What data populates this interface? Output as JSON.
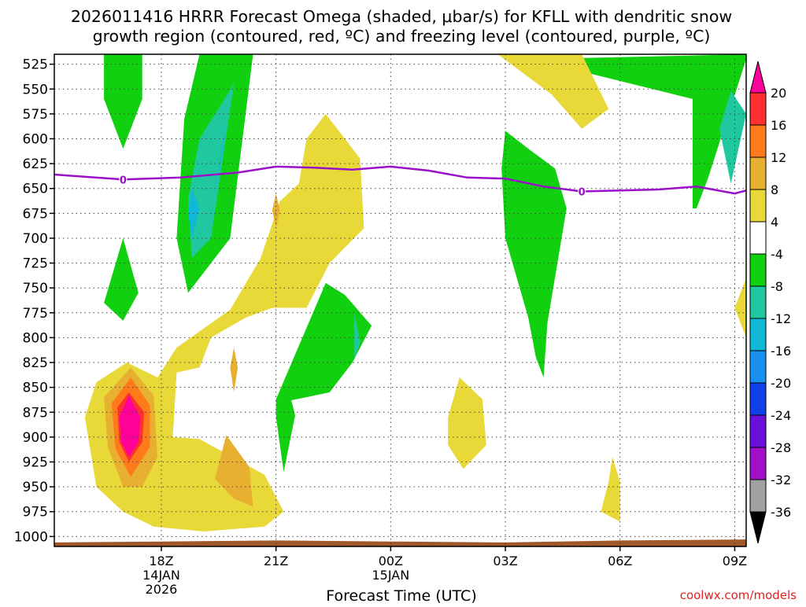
{
  "chart_data": {
    "type": "contour",
    "title_line1": "2026011416 HRRR Forecast Omega (shaded, μbar/s) for KFLL with dendritic snow",
    "title_line2": "growth region (contoured, red, ºC) and freezing level (contoured, purple, ºC)",
    "xlabel": "Forecast Time (UTC)",
    "credit": "coolwx.com/models",
    "x_range_hours": [
      -0.8,
      17.3
    ],
    "y_range_mb": [
      515,
      1010
    ],
    "pressure_levels": [
      525,
      550,
      575,
      600,
      625,
      650,
      675,
      700,
      725,
      750,
      775,
      800,
      825,
      850,
      875,
      900,
      925,
      950,
      975,
      1000
    ],
    "pressure_labels": [
      "525",
      "550",
      "575",
      "600",
      "625",
      "650",
      "675",
      "700",
      "725",
      "750",
      "775",
      "800",
      "825",
      "850",
      "875",
      "900",
      "925",
      "950",
      "975",
      "1000"
    ],
    "x_ticks": [
      {
        "hour": 2,
        "label": "18Z",
        "date": "14JAN",
        "year": "2026"
      },
      {
        "hour": 5,
        "label": "21Z",
        "date": "",
        "year": ""
      },
      {
        "hour": 8,
        "label": "00Z",
        "date": "15JAN",
        "year": ""
      },
      {
        "hour": 11,
        "label": "03Z",
        "date": "",
        "year": ""
      },
      {
        "hour": 14,
        "label": "06Z",
        "date": "",
        "year": ""
      },
      {
        "hour": 17,
        "label": "09Z",
        "date": "",
        "year": ""
      }
    ],
    "colorbar": {
      "labels": [
        "20",
        "16",
        "12",
        "8",
        "4",
        "-4",
        "-8",
        "-12",
        "-16",
        "-20",
        "-24",
        "-28",
        "-32",
        "-36"
      ],
      "colors": [
        "#ff0099",
        "#ff3030",
        "#ff7a1a",
        "#e8b030",
        "#e8d838",
        "#ffffff",
        "#10d010",
        "#20c8a0",
        "#10b8d8",
        "#1890f0",
        "#1040e8",
        "#6a10d8",
        "#a010c8",
        "#a0a0a0",
        "#000000"
      ]
    },
    "freezing_level": {
      "label": "0",
      "color": "#9910c8",
      "hours": [
        -0.8,
        1.0,
        2.5,
        4.0,
        5.0,
        6.0,
        7.0,
        8.0,
        9.0,
        10.0,
        11.0,
        12.0,
        13.0,
        14.0,
        15.0,
        16.0,
        17.0,
        17.3
      ],
      "pressure_mb": [
        636,
        641,
        639,
        634,
        628,
        629,
        631,
        628,
        632,
        639,
        640,
        648,
        653,
        652,
        651,
        648,
        655,
        652
      ],
      "label_hours": [
        1.0,
        13.0
      ]
    },
    "omega_regions": [
      {
        "level": -4,
        "points": [
          [
            0.5,
            512
          ],
          [
            1.5,
            512
          ],
          [
            1.5,
            560
          ],
          [
            1.0,
            610
          ],
          [
            0.5,
            560
          ]
        ]
      },
      {
        "level": -4,
        "points": [
          [
            3.0,
            512
          ],
          [
            4.4,
            512
          ],
          [
            3.8,
            700
          ],
          [
            2.7,
            755
          ],
          [
            2.4,
            700
          ],
          [
            2.6,
            580
          ]
        ]
      },
      {
        "level": -8,
        "points": [
          [
            3.9,
            545
          ],
          [
            3.3,
            700
          ],
          [
            2.8,
            720
          ],
          [
            2.7,
            660
          ],
          [
            3.0,
            600
          ]
        ]
      },
      {
        "level": -12,
        "points": [
          [
            3.7,
            585
          ],
          [
            3.4,
            650
          ],
          [
            3.6,
            615
          ]
        ]
      },
      {
        "level": -12,
        "points": [
          [
            2.8,
            650
          ],
          [
            3.0,
            670
          ],
          [
            2.8,
            700
          ],
          [
            2.7,
            675
          ]
        ]
      },
      {
        "level": -4,
        "points": [
          [
            1.0,
            700
          ],
          [
            1.4,
            755
          ],
          [
            1.0,
            783
          ],
          [
            0.5,
            765
          ]
        ]
      },
      {
        "level": -4,
        "points": [
          [
            11.7,
            520
          ],
          [
            17.3,
            515
          ],
          [
            17.3,
            520
          ],
          [
            16.3,
            640
          ],
          [
            16.0,
            670
          ],
          [
            15.9,
            670
          ],
          [
            15.9,
            560
          ]
        ]
      },
      {
        "level": -8,
        "points": [
          [
            16.9,
            552
          ],
          [
            17.4,
            575
          ],
          [
            16.9,
            645
          ],
          [
            16.6,
            590
          ]
        ]
      },
      {
        "level": -4,
        "points": [
          [
            11.0,
            592
          ],
          [
            11.6,
            610
          ],
          [
            12.3,
            630
          ],
          [
            12.6,
            670
          ],
          [
            12.1,
            785
          ],
          [
            12.0,
            840
          ],
          [
            11.8,
            820
          ],
          [
            11.6,
            780
          ],
          [
            11.0,
            700
          ],
          [
            10.9,
            630
          ]
        ]
      },
      {
        "level": -4,
        "points": [
          [
            6.3,
            745
          ],
          [
            6.8,
            757
          ],
          [
            7.5,
            788
          ],
          [
            7.0,
            825
          ],
          [
            6.4,
            855
          ],
          [
            5.4,
            863
          ],
          [
            5.5,
            878
          ],
          [
            5.2,
            935
          ],
          [
            5.0,
            880
          ],
          [
            5.0,
            862
          ]
        ]
      },
      {
        "level": -8,
        "points": [
          [
            7.05,
            775
          ],
          [
            7.2,
            805
          ],
          [
            7.05,
            822
          ]
        ]
      },
      {
        "level": 4,
        "points": [
          [
            6.3,
            575
          ],
          [
            7.2,
            620
          ],
          [
            7.3,
            690
          ],
          [
            6.4,
            725
          ],
          [
            5.8,
            770
          ],
          [
            4.9,
            770
          ],
          [
            4.2,
            780
          ],
          [
            3.3,
            800
          ],
          [
            3.0,
            830
          ],
          [
            2.4,
            835
          ],
          [
            2.3,
            900
          ],
          [
            3.0,
            902
          ],
          [
            4.7,
            938
          ],
          [
            5.2,
            975
          ],
          [
            4.7,
            990
          ],
          [
            3.1,
            995
          ],
          [
            1.8,
            990
          ],
          [
            1.0,
            975
          ],
          [
            0.3,
            950
          ],
          [
            0.0,
            880
          ],
          [
            0.3,
            845
          ],
          [
            1.1,
            825
          ],
          [
            1.9,
            840
          ],
          [
            2.4,
            810
          ],
          [
            3.8,
            772
          ],
          [
            4.6,
            720
          ],
          [
            5.1,
            663
          ],
          [
            5.6,
            645
          ],
          [
            5.8,
            600
          ]
        ]
      },
      {
        "level": 8,
        "points": [
          [
            5.0,
            655
          ],
          [
            5.1,
            672
          ],
          [
            5.0,
            690
          ],
          [
            4.9,
            672
          ]
        ]
      },
      {
        "level": 8,
        "points": [
          [
            3.9,
            810
          ],
          [
            4.0,
            830
          ],
          [
            3.9,
            855
          ],
          [
            3.8,
            830
          ]
        ]
      },
      {
        "level": 8,
        "points": [
          [
            3.7,
            898
          ],
          [
            4.3,
            930
          ],
          [
            4.4,
            970
          ],
          [
            3.9,
            962
          ],
          [
            3.4,
            942
          ]
        ]
      },
      {
        "level": 8,
        "points": [
          [
            1.2,
            830
          ],
          [
            1.8,
            858
          ],
          [
            1.9,
            920
          ],
          [
            1.5,
            950
          ],
          [
            1.0,
            950
          ],
          [
            0.6,
            910
          ],
          [
            0.5,
            860
          ]
        ]
      },
      {
        "level": 12,
        "points": [
          [
            1.2,
            840
          ],
          [
            1.7,
            868
          ],
          [
            1.7,
            910
          ],
          [
            1.2,
            940
          ],
          [
            0.8,
            912
          ],
          [
            0.7,
            866
          ]
        ]
      },
      {
        "level": 16,
        "points": [
          [
            1.15,
            855
          ],
          [
            1.55,
            875
          ],
          [
            1.5,
            905
          ],
          [
            1.15,
            925
          ],
          [
            0.9,
            905
          ],
          [
            0.85,
            870
          ]
        ]
      },
      {
        "level": 20,
        "points": [
          [
            1.15,
            858
          ],
          [
            1.45,
            880
          ],
          [
            1.4,
            905
          ],
          [
            1.15,
            920
          ],
          [
            0.95,
            905
          ],
          [
            0.9,
            880
          ]
        ]
      },
      {
        "level": 4,
        "points": [
          [
            9.8,
            840
          ],
          [
            10.4,
            862
          ],
          [
            10.5,
            908
          ],
          [
            9.9,
            932
          ],
          [
            9.5,
            908
          ],
          [
            9.5,
            880
          ]
        ]
      },
      {
        "level": 4,
        "points": [
          [
            13.8,
            920
          ],
          [
            14.0,
            945
          ],
          [
            14.0,
            985
          ],
          [
            13.5,
            975
          ],
          [
            13.7,
            945
          ]
        ]
      },
      {
        "level": 4,
        "points": [
          [
            10.8,
            512
          ],
          [
            13.0,
            512
          ],
          [
            13.7,
            570
          ],
          [
            13.0,
            590
          ],
          [
            12.2,
            555
          ]
        ]
      },
      {
        "level": 4,
        "points": [
          [
            17.3,
            740
          ],
          [
            17.3,
            800
          ],
          [
            17.0,
            770
          ]
        ]
      }
    ],
    "terrain": {
      "color": "#a0582a",
      "hours": [
        -0.8,
        2.0,
        5.0,
        8.0,
        11.0,
        14.0,
        17.3
      ],
      "top_mb": [
        1006,
        1005,
        1004,
        1005,
        1006,
        1004,
        1003
      ]
    }
  }
}
